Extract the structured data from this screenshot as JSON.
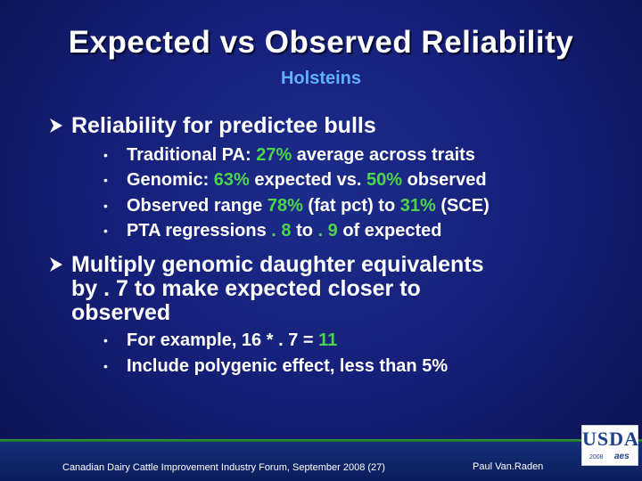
{
  "title": "Expected vs Observed Reliability",
  "subtitle": "Holsteins",
  "bullets": [
    {
      "text": "Reliability for predictee bulls",
      "subitems": [
        {
          "a": "Traditional PA: ",
          "b": "27%",
          "c": " average across traits"
        },
        {
          "a": "Genomic: ",
          "b": "63%",
          "c": " expected vs. ",
          "d": "50%",
          "e": " observed"
        },
        {
          "a": "Observed range ",
          "b": "78%",
          "c": " (fat pct) to ",
          "d": "31%",
          "e": " (SCE)"
        },
        {
          "a": "PTA regressions ",
          "b": ". 8",
          "c": " to ",
          "d": ". 9",
          "e": " of expected"
        }
      ]
    },
    {
      "line1": "Multiply genomic daughter equivalents",
      "line2": "by . 7 to make expected closer to",
      "line3": "observed",
      "subitems": [
        {
          "a": "For example, 16 * . 7 = ",
          "b": "11"
        },
        {
          "a": "Include polygenic effect, less than 5%"
        }
      ]
    }
  ],
  "footer": {
    "event": "Canadian Dairy Cattle Improvement Industry Forum, September 2008 (27)",
    "author": "Paul Van.Raden"
  },
  "logo": {
    "word": "USDA",
    "year": "2008",
    "mark": "aes"
  },
  "colors": {
    "background": "#16207a",
    "highlight": "#4cd54a",
    "subtitle": "#5fb0ff",
    "rule": "#2d9b37"
  },
  "icons": {
    "bullet_level1": "arrowhead-icon",
    "bullet_level2": "dot-icon"
  }
}
